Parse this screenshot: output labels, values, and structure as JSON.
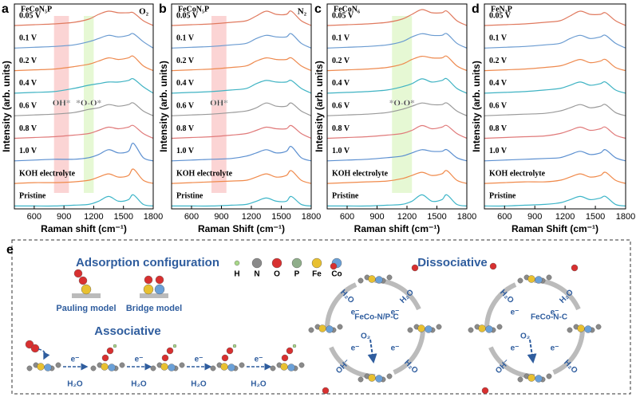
{
  "chart_data": [
    {
      "type": "line",
      "panel_label": "a",
      "title": "FeCoN₅P",
      "gas": "O₂",
      "xlabel": "Raman shift (cm⁻¹)",
      "ylabel": "Intensity (arb. units)",
      "x": [
        400,
        600,
        800,
        1000,
        1150,
        1250,
        1350,
        1450,
        1550,
        1600,
        1700,
        1800
      ],
      "xlim": [
        400,
        1800
      ],
      "xticks": [
        600,
        900,
        1200,
        1500,
        1800
      ],
      "bands": [
        {
          "label": "OH*",
          "range": [
            800,
            950
          ],
          "color": "#f7a0a0"
        },
        {
          "label": "*O-O*",
          "range": [
            1100,
            1200
          ],
          "color": "#c8f0a0"
        }
      ],
      "series": [
        {
          "name": "0.05 V",
          "color": "#e07a5f",
          "values": [
            0,
            0.5,
            1,
            2,
            4,
            7,
            9,
            8,
            8,
            8,
            3,
            0
          ]
        },
        {
          "name": "0.1 V",
          "color": "#6a9bd1",
          "values": [
            0,
            0.5,
            1,
            2,
            4,
            6,
            8,
            7,
            8,
            9,
            4,
            0
          ]
        },
        {
          "name": "0.2 V",
          "color": "#ee8a4f",
          "values": [
            0,
            0.5,
            1,
            2.5,
            4,
            6,
            8,
            7,
            8,
            9,
            3,
            0
          ]
        },
        {
          "name": "0.4 V",
          "color": "#3fb3c3",
          "values": [
            0,
            0.5,
            1,
            3,
            5,
            6,
            7,
            7,
            8,
            9,
            4,
            0
          ]
        },
        {
          "name": "0.6 V",
          "color": "#9a9a9a",
          "values": [
            0,
            0.5,
            1,
            2,
            4,
            5,
            7,
            6,
            7,
            8,
            3,
            0
          ]
        },
        {
          "name": "0.8 V",
          "color": "#e07a7a",
          "values": [
            0,
            0.5,
            1,
            2,
            3,
            5,
            7,
            6,
            7,
            8,
            3,
            0
          ]
        },
        {
          "name": "1.0 V",
          "color": "#5b8fd0",
          "values": [
            0,
            0.5,
            1,
            1,
            2,
            4,
            7,
            5,
            6,
            11,
            2,
            0
          ]
        },
        {
          "name": "KOH electrolyte",
          "color": "#f08a4b",
          "values": [
            0,
            0.5,
            0.5,
            1,
            2,
            4,
            6,
            4,
            5,
            9,
            2,
            0
          ]
        },
        {
          "name": "Pristine",
          "color": "#3db5c8",
          "values": [
            0,
            0,
            0,
            0.5,
            1,
            3,
            6,
            3,
            4,
            7,
            1,
            0
          ]
        }
      ]
    },
    {
      "type": "line",
      "panel_label": "b",
      "title": "FeCoN₅P",
      "gas": "N₂",
      "xlabel": "Raman Shift (cm⁻¹)",
      "ylabel": "Intensity (arb. units)",
      "x": [
        400,
        600,
        800,
        1000,
        1150,
        1250,
        1350,
        1450,
        1550,
        1600,
        1700,
        1800
      ],
      "xlim": [
        400,
        1800
      ],
      "xticks": [
        600,
        900,
        1200,
        1500,
        1800
      ],
      "bands": [
        {
          "label": "OH*",
          "range": [
            800,
            950
          ],
          "color": "#f7a0a0"
        }
      ],
      "series": [
        {
          "name": "0.05 V",
          "color": "#e07a5f",
          "values": [
            0,
            0.5,
            1,
            2,
            3,
            6,
            9,
            7,
            7,
            9,
            3,
            0
          ]
        },
        {
          "name": "0.1 V",
          "color": "#6a9bd1",
          "values": [
            0,
            0.5,
            1,
            2,
            3,
            6,
            8,
            7,
            7,
            9,
            3,
            0
          ]
        },
        {
          "name": "0.2 V",
          "color": "#ee8a4f",
          "values": [
            0,
            0.5,
            1,
            2,
            3,
            6,
            8,
            7,
            7,
            8,
            3,
            0
          ]
        },
        {
          "name": "0.4 V",
          "color": "#3fb3c3",
          "values": [
            0,
            0.5,
            1,
            2,
            3,
            6,
            8,
            7,
            7,
            8,
            3,
            0
          ]
        },
        {
          "name": "0.6 V",
          "color": "#9a9a9a",
          "values": [
            0,
            0.5,
            1,
            2,
            3,
            5,
            8,
            6,
            6,
            8,
            3,
            0
          ]
        },
        {
          "name": "0.8 V",
          "color": "#e07a7a",
          "values": [
            0,
            0.5,
            1,
            2,
            3,
            5,
            7,
            6,
            6,
            8,
            3,
            0
          ]
        },
        {
          "name": "1.0 V",
          "color": "#5b8fd0",
          "values": [
            0,
            0.5,
            1,
            1.5,
            3,
            5,
            7,
            5,
            6,
            9,
            2,
            0
          ]
        },
        {
          "name": "KOH electrolyte",
          "color": "#f08a4b",
          "values": [
            0,
            0.5,
            1,
            1.5,
            2,
            4,
            6,
            4,
            5,
            8,
            2,
            0
          ]
        },
        {
          "name": "Pristine",
          "color": "#3db5c8",
          "values": [
            0,
            0,
            0,
            0.5,
            1,
            3,
            5,
            3,
            3,
            6,
            1,
            0
          ]
        }
      ]
    },
    {
      "type": "line",
      "panel_label": "c",
      "title": "FeCoN₆",
      "xlabel": "Raman shift (cm⁻¹)",
      "ylabel": "Intensity (arb. units)",
      "x": [
        400,
        600,
        800,
        1000,
        1150,
        1250,
        1350,
        1450,
        1550,
        1600,
        1700,
        1800
      ],
      "xlim": [
        400,
        1800
      ],
      "xticks": [
        600,
        900,
        1200,
        1500,
        1800
      ],
      "bands": [
        {
          "label": "*O-O*",
          "range": [
            1050,
            1250
          ],
          "color": "#c8f0a0"
        }
      ],
      "series": [
        {
          "name": "0.05 V",
          "color": "#e07a5f",
          "values": [
            0,
            0.5,
            1,
            2,
            4,
            7,
            10,
            8,
            8,
            9,
            3,
            0
          ]
        },
        {
          "name": "0.1 V",
          "color": "#6a9bd1",
          "values": [
            0,
            0.5,
            1,
            2,
            4,
            7,
            9,
            8,
            8,
            9,
            3,
            0
          ]
        },
        {
          "name": "0.2 V",
          "color": "#ee8a4f",
          "values": [
            0,
            0.5,
            1,
            2,
            4,
            7,
            9,
            8,
            8,
            9,
            3,
            0
          ]
        },
        {
          "name": "0.4 V",
          "color": "#3fb3c3",
          "values": [
            0,
            0.5,
            1,
            2,
            4,
            6,
            9,
            7,
            8,
            9,
            3,
            0
          ]
        },
        {
          "name": "0.6 V",
          "color": "#9a9a9a",
          "values": [
            0,
            0.5,
            1,
            2,
            4,
            6,
            8,
            7,
            7,
            8,
            3,
            0
          ]
        },
        {
          "name": "0.8 V",
          "color": "#e07a7a",
          "values": [
            0,
            0.5,
            1,
            2,
            3,
            5,
            8,
            6,
            7,
            8,
            3,
            0
          ]
        },
        {
          "name": "1.0 V",
          "color": "#5b8fd0",
          "values": [
            0,
            0.5,
            1,
            2,
            3,
            5,
            7,
            6,
            6,
            7,
            2,
            0
          ]
        },
        {
          "name": "KOH electrolyte",
          "color": "#f08a4b",
          "values": [
            0,
            0.5,
            1,
            1.5,
            3,
            5,
            7,
            5,
            6,
            8,
            2,
            0
          ]
        },
        {
          "name": "Pristine",
          "color": "#3db5c8",
          "values": [
            0,
            0,
            0,
            0.5,
            1,
            3,
            7,
            3,
            4,
            7,
            1,
            0
          ]
        }
      ]
    },
    {
      "type": "line",
      "panel_label": "d",
      "title": "FeN₃P",
      "xlabel": "Raman Shift (cm⁻¹)",
      "ylabel": "Intensity (arb. units)",
      "x": [
        400,
        600,
        800,
        1000,
        1150,
        1250,
        1350,
        1450,
        1550,
        1600,
        1700,
        1800
      ],
      "xlim": [
        400,
        1800
      ],
      "xticks": [
        600,
        900,
        1200,
        1500,
        1800
      ],
      "bands": [],
      "series": [
        {
          "name": "0.05 V",
          "color": "#e07a5f",
          "values": [
            0,
            0.5,
            1,
            2,
            3,
            6,
            9,
            7,
            7,
            8,
            3,
            0
          ]
        },
        {
          "name": "0.1 V",
          "color": "#6a9bd1",
          "values": [
            0,
            0.5,
            1,
            2,
            3,
            6,
            8,
            6,
            7,
            8,
            3,
            0
          ]
        },
        {
          "name": "0.2 V",
          "color": "#ee8a4f",
          "values": [
            0,
            0.5,
            1,
            2,
            3,
            5,
            7,
            5,
            6,
            7,
            2,
            0
          ]
        },
        {
          "name": "0.4 V",
          "color": "#3fb3c3",
          "values": [
            0,
            0.5,
            1,
            2,
            3,
            5,
            7,
            5,
            6,
            7,
            2,
            0
          ]
        },
        {
          "name": "0.6 V",
          "color": "#9a9a9a",
          "values": [
            0,
            0.5,
            1,
            1.5,
            3,
            5,
            7,
            5,
            6,
            7,
            2,
            0
          ]
        },
        {
          "name": "0.8 V",
          "color": "#e07a7a",
          "values": [
            0,
            0.5,
            1,
            1.5,
            3,
            5,
            7,
            5,
            6,
            7,
            2,
            0
          ]
        },
        {
          "name": "1.0 V",
          "color": "#5b8fd0",
          "values": [
            0,
            0.5,
            1,
            1.5,
            2,
            4,
            6,
            4,
            5,
            7,
            2,
            0
          ]
        },
        {
          "name": "KOH electrolyte",
          "color": "#f08a4b",
          "values": [
            0,
            0.5,
            1,
            1,
            2,
            4,
            6,
            4,
            5,
            7,
            2,
            0
          ]
        },
        {
          "name": "Pristine",
          "color": "#3db5c8",
          "values": [
            0,
            0,
            0.5,
            1,
            2,
            4,
            6,
            4,
            5,
            6,
            1,
            0
          ]
        }
      ]
    }
  ],
  "schematic": {
    "label": "e",
    "adsorption_title": "Adsorption configuration",
    "pauling": "Pauling model",
    "bridge": "Bridge model",
    "associative": "Associative",
    "dissociative": "Dissociative",
    "legend": [
      "H",
      "N",
      "O",
      "P",
      "Fe",
      "Co"
    ],
    "catalysts": [
      "FeCo-N/P-C",
      "FeCo-N-C"
    ],
    "species": {
      "water": "H₂O",
      "electron": "e⁻",
      "oxygen": "O₂",
      "hydroxide": "OH⁻"
    }
  }
}
